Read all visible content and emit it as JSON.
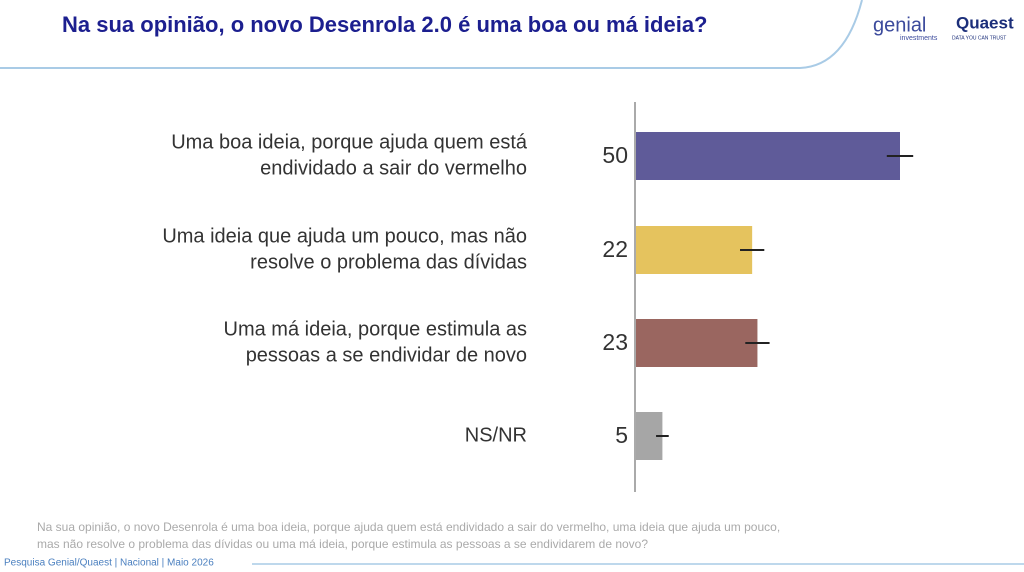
{
  "chart_data": {
    "type": "barh",
    "title": "Na sua opinião, o novo Desenrola 2.0 é uma boa ou má ideia?",
    "categories": [
      [
        "Uma boa ideia, porque ajuda quem está",
        "endividado a sair do vermelho"
      ],
      [
        "Uma ideia que ajuda um pouco, mas não",
        "resolve o problema das dívidas"
      ],
      [
        "Uma má ideia, porque estimula as",
        "pessoas a se endividar de novo"
      ],
      [
        "NS/NR"
      ]
    ],
    "values": [
      50,
      22,
      23,
      5
    ],
    "errors": [
      2.5,
      2.3,
      2.3,
      1.2
    ],
    "colors": [
      "#5f5b99",
      "#e5c35e",
      "#9a6660",
      "#a6a6a6"
    ],
    "xlim": [
      0,
      70
    ],
    "note": [
      "Na sua opinião, o novo Desenrola é uma boa ideia, porque ajuda quem está endividado a sair do vermelho, uma ideia que ajuda um pouco,",
      "mas não resolve o problema das dívidas ou uma má ideia, porque estimula as pessoas a se endividarem de novo?"
    ],
    "source": "Pesquisa Genial/Quaest | Nacional | Maio 2026",
    "logos": {
      "genial": "genial",
      "genial_sub": "investments",
      "quaest": "Quaest",
      "quaest_sub": "DATA YOU CAN TRUST"
    }
  }
}
